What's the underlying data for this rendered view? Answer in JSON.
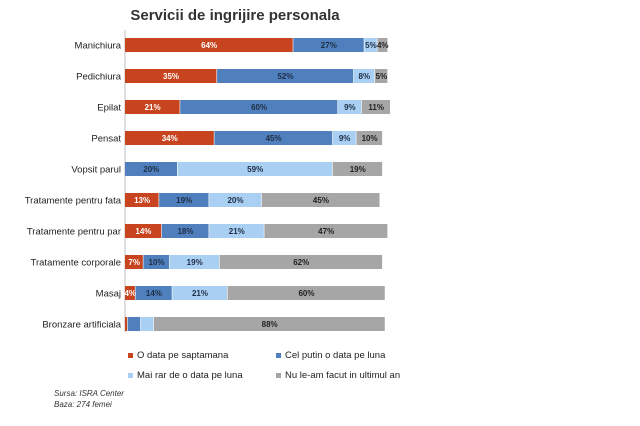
{
  "chart_data": {
    "type": "bar",
    "orientation": "horizontal",
    "stacked": "100%",
    "title": "Servicii de ingrijire personala",
    "categories": [
      "Manichiura",
      "Pedichiura",
      "Epilat",
      "Pensat",
      "Vopsit parul",
      "Tratamente pentru fata",
      "Tratamente pentru par",
      "Tratamente corporale",
      "Masaj",
      "Bronzare artificiala"
    ],
    "series": [
      {
        "name": "O data pe saptamana",
        "color": "#c8441e",
        "text_color": "#ffffff",
        "values": [
          64,
          35,
          21,
          34,
          0,
          13,
          14,
          7,
          4,
          1
        ],
        "labels": [
          "64%",
          "35%",
          "21%",
          "34%",
          "",
          "13%",
          "14%",
          "7%",
          "4%",
          ""
        ]
      },
      {
        "name": "Cel putin o data pe luna",
        "color": "#4f80bd",
        "text_color": "#1f2d44",
        "values": [
          27,
          52,
          60,
          45,
          20,
          19,
          18,
          10,
          14,
          5
        ],
        "labels": [
          "27%",
          "52%",
          "60%",
          "45%",
          "20%",
          "19%",
          "18%",
          "10%",
          "14%",
          ""
        ]
      },
      {
        "name": "Mai rar de o data pe luna",
        "color": "#a9cff2",
        "text_color": "#1f2d44",
        "values": [
          5,
          8,
          9,
          9,
          59,
          20,
          21,
          19,
          21,
          5
        ],
        "labels": [
          "5%",
          "8%",
          "9%",
          "9%",
          "59%",
          "20%",
          "21%",
          "19%",
          "21%",
          ""
        ]
      },
      {
        "name": "Nu le-am facut in ultimul an",
        "color": "#a6a6a6",
        "text_color": "#1f1f1f",
        "values": [
          4,
          5,
          11,
          10,
          19,
          45,
          47,
          62,
          60,
          88
        ],
        "labels": [
          "4%",
          "5%",
          "11%",
          "10%",
          "19%",
          "45%",
          "47%",
          "62%",
          "60%",
          "88%"
        ]
      }
    ],
    "xlim": [
      0,
      100
    ],
    "legend": "bottom"
  },
  "footer": {
    "source": "Sursa: ISRA Center",
    "base": "Baza: 274 femei"
  }
}
